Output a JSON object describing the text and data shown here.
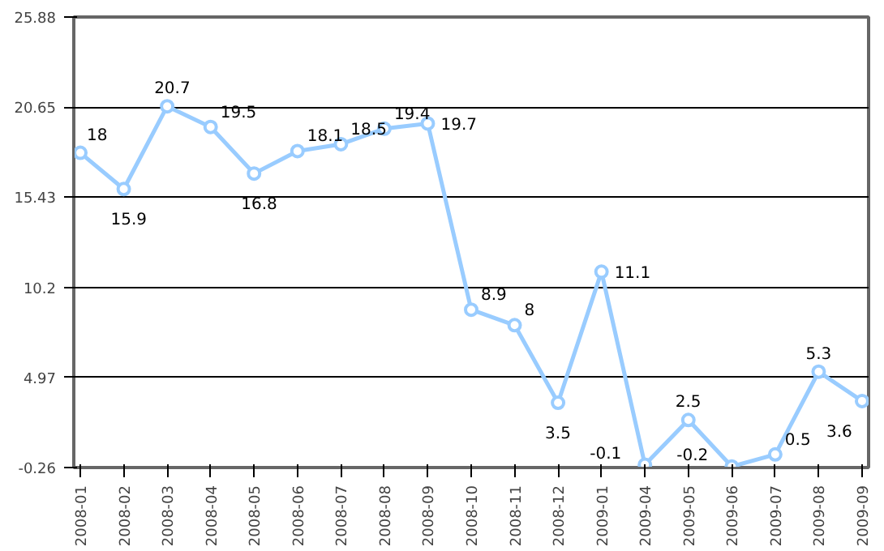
{
  "chart_data": {
    "type": "line",
    "categories": [
      "2008-01",
      "2008-02",
      "2008-03",
      "2008-04",
      "2008-05",
      "2008-06",
      "2008-07",
      "2008-08",
      "2008-09",
      "2008-10",
      "2008-11",
      "2008-12",
      "2009-01",
      "2009-04",
      "2009-05",
      "2009-06",
      "2009-07",
      "2009-08",
      "2009-09"
    ],
    "series": [
      {
        "color": "#99ccff",
        "values": [
          18,
          15.9,
          20.7,
          19.5,
          16.8,
          18.1,
          18.5,
          19.4,
          19.7,
          8.9,
          8,
          3.5,
          11.1,
          -0.1,
          2.5,
          -0.2,
          0.5,
          5.3,
          3.6
        ]
      }
    ],
    "ylim": [
      -0.26,
      25.88
    ],
    "yticks": [
      {
        "value": -0.26,
        "label": "-0.26"
      },
      4.97,
      10.2,
      15.43,
      20.65,
      25.88
    ],
    "grid": "y",
    "marker": "circle",
    "line_style": "solid",
    "data_labels": true
  }
}
